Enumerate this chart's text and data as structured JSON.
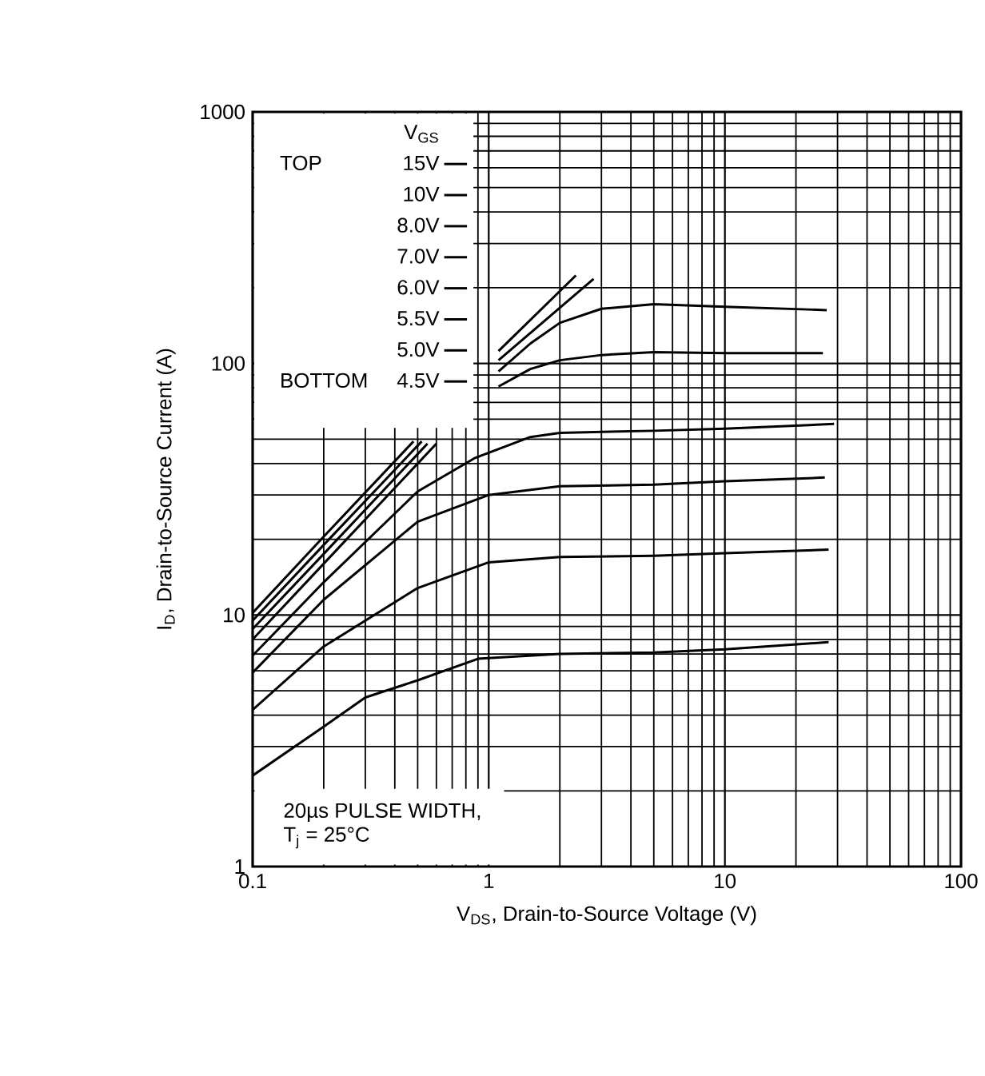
{
  "chart_data": {
    "type": "line",
    "xlabel": "V$_{DS}$, Drain-to-Source Voltage (V)",
    "ylabel": "I$_{D}$, Drain-to-Source Current (A)",
    "legend_title": "V$_{GS}$",
    "legend": "top left",
    "log": "xy",
    "grid": true,
    "xlim": [
      0.1,
      100
    ],
    "ylim": [
      1,
      1000
    ],
    "xticks": [
      0.1,
      1,
      10,
      100
    ],
    "yticks": [
      1,
      10,
      100,
      1000
    ],
    "annotations": [
      "TOP",
      "BOTTOM",
      "20µs PULSE WIDTH,",
      "T$_{j}$ = 25°C"
    ],
    "series": [
      {
        "name": "15V",
        "color": "#000000",
        "x": [
          0.1,
          0.2,
          0.48,
          0.7,
          1.1,
          2.34
        ],
        "values": [
          10.2,
          20.5,
          49,
          null,
          112,
          224
        ]
      },
      {
        "name": "10V",
        "color": "#000000",
        "x": [
          0.1,
          0.2,
          0.52,
          0.7,
          1.1,
          2.78
        ],
        "values": [
          9.5,
          19,
          49,
          null,
          103,
          217
        ]
      },
      {
        "name": "8.0V",
        "color": "#000000",
        "x": [
          0.1,
          0.2,
          0.55,
          0.8,
          1.1,
          1.5,
          2,
          3,
          5,
          10,
          27
        ],
        "values": [
          8.8,
          17.5,
          48,
          null,
          93,
          120,
          145,
          165,
          172,
          168,
          163
        ]
      },
      {
        "name": "7.0V",
        "color": "#000000",
        "x": [
          0.1,
          0.2,
          0.6,
          0.8,
          1.1,
          1.5,
          2,
          3,
          5,
          10,
          26
        ],
        "values": [
          8.0,
          16,
          48,
          null,
          81,
          95,
          103,
          108,
          111,
          110,
          110
        ]
      },
      {
        "name": "6.0V",
        "color": "#000000",
        "x": [
          0.1,
          0.2,
          0.5,
          0.87,
          1.5,
          2,
          5,
          10,
          29
        ],
        "values": [
          6.9,
          13.5,
          31,
          42,
          51,
          53,
          54,
          55,
          57.5
        ]
      },
      {
        "name": "5.5V",
        "color": "#000000",
        "x": [
          0.1,
          0.2,
          0.5,
          1,
          2,
          5,
          10,
          26.5
        ],
        "values": [
          5.9,
          11.5,
          23.5,
          30,
          32.5,
          33,
          34,
          35.2
        ]
      },
      {
        "name": "5.0V",
        "color": "#000000",
        "x": [
          0.1,
          0.2,
          0.5,
          1,
          2,
          5,
          10,
          27.5
        ],
        "values": [
          4.2,
          7.5,
          12.8,
          16.2,
          17,
          17.2,
          17.6,
          18.2
        ]
      },
      {
        "name": "4.5V",
        "color": "#000000",
        "x": [
          0.1,
          0.2,
          0.3,
          0.5,
          0.9,
          2,
          5,
          10,
          27.5
        ],
        "values": [
          2.3,
          3.6,
          4.7,
          5.5,
          6.7,
          7.0,
          7.1,
          7.3,
          7.8
        ]
      }
    ]
  }
}
